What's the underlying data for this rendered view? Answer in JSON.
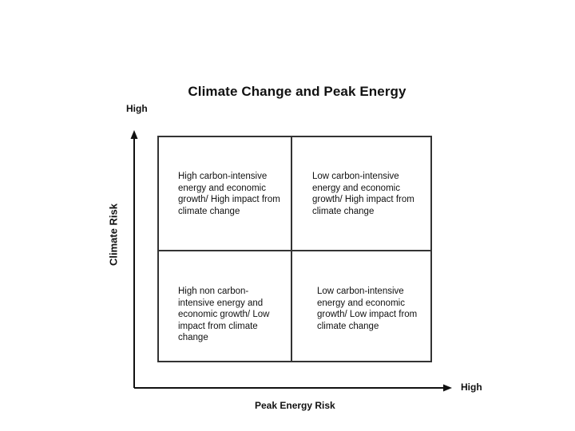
{
  "title": "Climate Change and Peak Energy",
  "y_axis": {
    "label": "Climate Risk",
    "high_label": "High"
  },
  "x_axis": {
    "label": "Peak Energy Risk",
    "high_label": "High"
  },
  "quadrants": {
    "top_left": "High carbon-intensive energy and economic growth/ High impact from climate change",
    "top_right": "Low carbon-intensive energy and economic growth/ High impact from climate change",
    "bottom_left": "High non carbon-intensive energy and economic growth/ Low impact from climate change",
    "bottom_right": "Low carbon-intensive energy and economic growth/ Low impact from climate change"
  }
}
